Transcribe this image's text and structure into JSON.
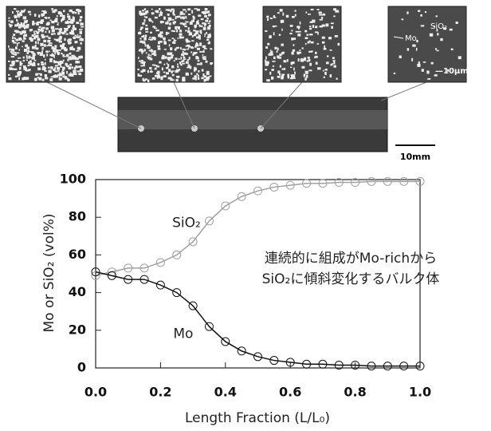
{
  "figure": {
    "sample_scale": "10mm",
    "micro_scale": "—10μm",
    "micro_labels": [
      "Mo",
      "SiO₂"
    ]
  },
  "chart_data": {
    "type": "line",
    "x_label": "Length Fraction (L/L₀)",
    "y_label": "Mo or SiO₂ (vol%)",
    "annotation": [
      "連続的に組成がMo-richから",
      "SiO₂に傾斜変化するバルク体"
    ],
    "x": [
      0,
      0.05,
      0.1,
      0.15,
      0.2,
      0.25,
      0.3,
      0.35,
      0.4,
      0.45,
      0.5,
      0.55,
      0.6,
      0.65,
      0.7,
      0.75,
      0.8,
      0.85,
      0.9,
      0.95,
      1.0
    ],
    "series": [
      {
        "name": "SiO₂",
        "color": "#a0a0a0",
        "values": [
          49,
          51,
          53,
          53,
          56,
          60,
          67,
          78,
          86,
          91,
          94,
          96,
          97,
          98,
          98,
          98.5,
          98.5,
          99,
          99,
          99,
          99
        ]
      },
      {
        "name": "Mo",
        "color": "#111111",
        "values": [
          51,
          49,
          47,
          47,
          44,
          40,
          33,
          22,
          14,
          9,
          6,
          4,
          3,
          2,
          2,
          1.5,
          1.5,
          1,
          1,
          1,
          1
        ]
      }
    ],
    "xlim": [
      0,
      1
    ],
    "ylim": [
      0,
      100
    ],
    "xticks": [
      {
        "value": 0,
        "label": "0.0"
      },
      {
        "value": 0.2,
        "label": "0.2"
      },
      {
        "value": 0.4,
        "label": "0.4"
      },
      {
        "value": 0.6,
        "label": "0.6"
      },
      {
        "value": 0.8,
        "label": "0.8"
      },
      {
        "value": 1,
        "label": "1.0"
      }
    ],
    "yticks": [
      0,
      20,
      40,
      60,
      80,
      100
    ],
    "grid": false
  }
}
